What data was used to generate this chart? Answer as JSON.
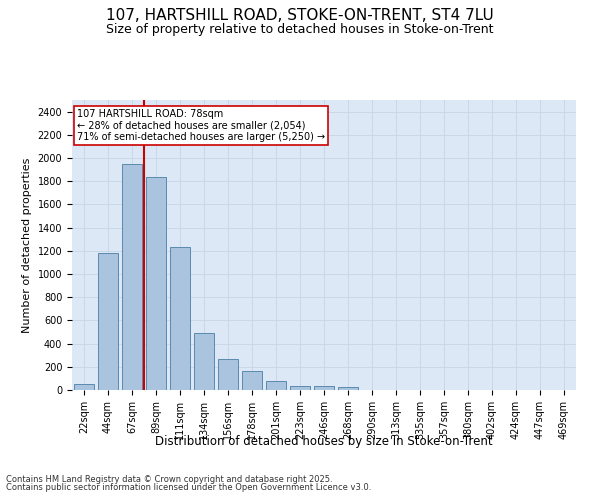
{
  "title1": "107, HARTSHILL ROAD, STOKE-ON-TRENT, ST4 7LU",
  "title2": "Size of property relative to detached houses in Stoke-on-Trent",
  "xlabel": "Distribution of detached houses by size in Stoke-on-Trent",
  "ylabel": "Number of detached properties",
  "categories": [
    "22sqm",
    "44sqm",
    "67sqm",
    "89sqm",
    "111sqm",
    "134sqm",
    "156sqm",
    "178sqm",
    "201sqm",
    "223sqm",
    "246sqm",
    "268sqm",
    "290sqm",
    "313sqm",
    "335sqm",
    "357sqm",
    "380sqm",
    "402sqm",
    "424sqm",
    "447sqm",
    "469sqm"
  ],
  "values": [
    50,
    1180,
    1950,
    1840,
    1230,
    490,
    270,
    160,
    75,
    35,
    35,
    25,
    0,
    0,
    0,
    0,
    0,
    0,
    0,
    0,
    0
  ],
  "bar_color": "#aac4e0",
  "bar_edge_color": "#5a8ab0",
  "vline_color": "#cc0000",
  "annotation_text": "107 HARTSHILL ROAD: 78sqm\n← 28% of detached houses are smaller (2,054)\n71% of semi-detached houses are larger (5,250) →",
  "annotation_box_color": "#ffffff",
  "annotation_box_edge": "#cc0000",
  "ylim": [
    0,
    2500
  ],
  "yticks": [
    0,
    200,
    400,
    600,
    800,
    1000,
    1200,
    1400,
    1600,
    1800,
    2000,
    2200,
    2400
  ],
  "grid_color": "#c8d8e8",
  "background_color": "#dce8f5",
  "footer1": "Contains HM Land Registry data © Crown copyright and database right 2025.",
  "footer2": "Contains public sector information licensed under the Open Government Licence v3.0.",
  "title1_fontsize": 11,
  "title2_fontsize": 9,
  "xlabel_fontsize": 8.5,
  "ylabel_fontsize": 8,
  "tick_fontsize": 7,
  "annotation_fontsize": 7,
  "footer_fontsize": 6
}
